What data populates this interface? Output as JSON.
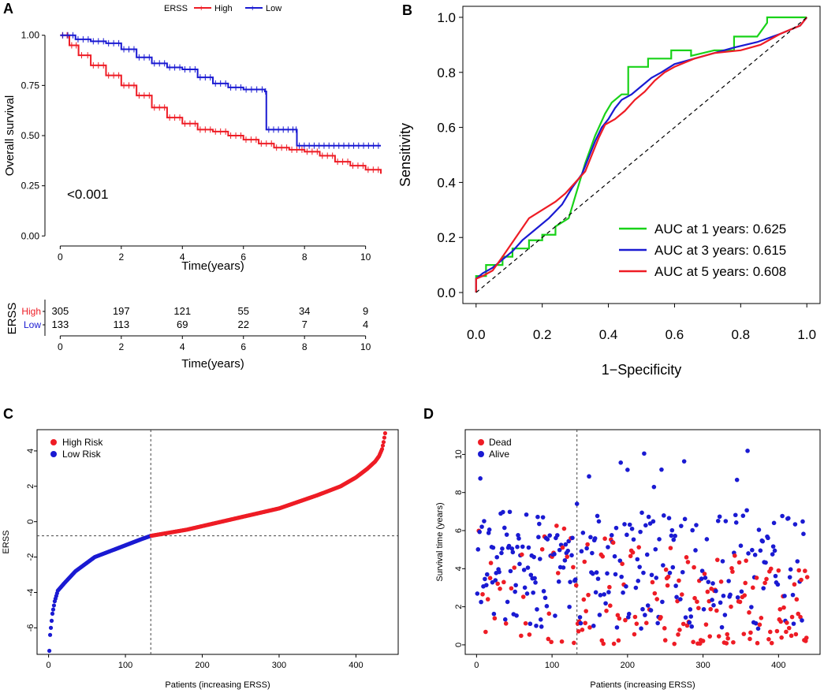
{
  "colors": {
    "high": "#ee1c25",
    "low": "#1a1ad2",
    "green": "#19d219",
    "axis": "#000000"
  },
  "chart_data": [
    {
      "panel": "A",
      "type": "line",
      "title": "",
      "legend_title": "ERSS",
      "legend_position": "top",
      "xlabel": "Time(years)",
      "ylabel": "Overall survival",
      "xlim": [
        -0.5,
        10.5
      ],
      "ylim": [
        -0.05,
        1.05
      ],
      "xticks": [
        "0",
        "2",
        "4",
        "6",
        "8",
        "10"
      ],
      "yticks": [
        "0.00",
        "0.25",
        "0.50",
        "0.75",
        "1.00"
      ],
      "pvalue": "<0.001",
      "series": [
        {
          "name": "High",
          "color_key": "high",
          "t": [
            0,
            0.3,
            0.6,
            1.0,
            1.5,
            2.0,
            2.5,
            3.0,
            3.5,
            4.0,
            4.5,
            5.0,
            5.5,
            6.0,
            6.5,
            7.0,
            7.5,
            8.0,
            8.5,
            9.0,
            9.5,
            10.0,
            10.5
          ],
          "s": [
            1.0,
            0.95,
            0.9,
            0.85,
            0.8,
            0.75,
            0.7,
            0.64,
            0.59,
            0.56,
            0.53,
            0.52,
            0.5,
            0.48,
            0.46,
            0.44,
            0.43,
            0.42,
            0.4,
            0.37,
            0.35,
            0.33,
            0.31
          ]
        },
        {
          "name": "Low",
          "color_key": "low",
          "t": [
            0,
            0.5,
            1.0,
            1.5,
            2.0,
            2.5,
            3.0,
            3.5,
            4.0,
            4.5,
            5.0,
            5.5,
            6.0,
            6.7,
            6.75,
            7.7,
            7.75,
            10.5
          ],
          "s": [
            1.0,
            0.98,
            0.97,
            0.96,
            0.93,
            0.89,
            0.86,
            0.84,
            0.83,
            0.79,
            0.76,
            0.74,
            0.73,
            0.72,
            0.53,
            0.53,
            0.45,
            0.45
          ]
        }
      ]
    },
    {
      "panel": "A-risk-table",
      "type": "table",
      "title": "ERSS",
      "xlabel": "Time(years)",
      "xticks": [
        "0",
        "2",
        "4",
        "6",
        "8",
        "10"
      ],
      "rows": [
        {
          "label": "High",
          "color_key": "high",
          "values": [
            "305",
            "197",
            "121",
            "55",
            "34",
            "9"
          ]
        },
        {
          "label": "Low",
          "color_key": "low",
          "values": [
            "133",
            "113",
            "69",
            "22",
            "7",
            "4"
          ]
        }
      ]
    },
    {
      "panel": "B",
      "type": "line",
      "title": "",
      "xlabel": "1−Specificity",
      "ylabel": "Sensitivity",
      "xlim": [
        -0.04,
        1.04
      ],
      "ylim": [
        -0.04,
        1.04
      ],
      "xticks": [
        "0.0",
        "0.2",
        "0.4",
        "0.6",
        "0.8",
        "1.0"
      ],
      "yticks": [
        "0.0",
        "0.2",
        "0.4",
        "0.6",
        "0.8",
        "1.0"
      ],
      "legend_position": "bottom-right",
      "series": [
        {
          "name": "AUC at 1 years: 0.625",
          "color_key": "green",
          "x": [
            0,
            0,
            0.03,
            0.03,
            0.08,
            0.08,
            0.11,
            0.11,
            0.16,
            0.16,
            0.2,
            0.2,
            0.24,
            0.24,
            0.28,
            0.3,
            0.33,
            0.36,
            0.39,
            0.41,
            0.44,
            0.46,
            0.46,
            0.52,
            0.52,
            0.59,
            0.59,
            0.65,
            0.65,
            0.72,
            0.78,
            0.78,
            0.85,
            0.88,
            0.88,
            0.96,
            1.0
          ],
          "y": [
            0,
            0.06,
            0.06,
            0.1,
            0.1,
            0.13,
            0.13,
            0.16,
            0.16,
            0.19,
            0.19,
            0.21,
            0.21,
            0.24,
            0.27,
            0.35,
            0.47,
            0.57,
            0.65,
            0.69,
            0.72,
            0.72,
            0.82,
            0.82,
            0.85,
            0.85,
            0.88,
            0.88,
            0.86,
            0.88,
            0.88,
            0.93,
            0.93,
            0.98,
            1.0,
            1.0,
            1.0
          ]
        },
        {
          "name": "AUC at 3 years: 0.615",
          "color_key": "low",
          "x": [
            0,
            0,
            0.02,
            0.05,
            0.08,
            0.11,
            0.14,
            0.18,
            0.22,
            0.26,
            0.29,
            0.32,
            0.34,
            0.36,
            0.38,
            0.4,
            0.42,
            0.44,
            0.47,
            0.5,
            0.53,
            0.56,
            0.6,
            0.66,
            0.72,
            0.78,
            0.85,
            0.92,
            0.98,
            1.0
          ],
          "y": [
            0,
            0.05,
            0.07,
            0.09,
            0.12,
            0.15,
            0.19,
            0.23,
            0.27,
            0.32,
            0.38,
            0.43,
            0.49,
            0.55,
            0.6,
            0.63,
            0.67,
            0.7,
            0.72,
            0.75,
            0.78,
            0.8,
            0.83,
            0.85,
            0.87,
            0.89,
            0.91,
            0.94,
            0.97,
            1.0
          ]
        },
        {
          "name": "AUC at 5 years: 0.608",
          "color_key": "high",
          "x": [
            0,
            0,
            0.02,
            0.05,
            0.08,
            0.12,
            0.16,
            0.2,
            0.24,
            0.27,
            0.3,
            0.33,
            0.35,
            0.37,
            0.39,
            0.42,
            0.45,
            0.48,
            0.51,
            0.54,
            0.57,
            0.6,
            0.66,
            0.72,
            0.8,
            0.86,
            0.92,
            0.98,
            1.0
          ],
          "y": [
            0,
            0.05,
            0.06,
            0.08,
            0.13,
            0.2,
            0.27,
            0.3,
            0.33,
            0.36,
            0.4,
            0.44,
            0.5,
            0.56,
            0.61,
            0.63,
            0.66,
            0.7,
            0.73,
            0.77,
            0.8,
            0.82,
            0.85,
            0.87,
            0.88,
            0.9,
            0.94,
            0.97,
            1.0
          ]
        },
        {
          "name": "reference",
          "color_key": "axis",
          "dashed": true,
          "x": [
            0,
            1
          ],
          "y": [
            0,
            1
          ]
        }
      ]
    },
    {
      "panel": "C",
      "type": "scatter",
      "title": "",
      "xlabel": "Patients (increasing ERSS)",
      "ylabel": "ERSS",
      "xlim": [
        -15,
        455
      ],
      "ylim": [
        -7.5,
        5.2
      ],
      "xticks": [
        "0",
        "100",
        "200",
        "300",
        "400"
      ],
      "yticks": [
        "-6",
        "-4",
        "-2",
        "0",
        "2",
        "4"
      ],
      "n_patients": 438,
      "cutoff_patient": 133,
      "cutoff_score": -0.8,
      "legend": [
        "High Risk",
        "Low Risk"
      ],
      "legend_position": "top-left",
      "curve_knots": {
        "patient": [
          1,
          2,
          3,
          5,
          8,
          12,
          20,
          35,
          60,
          90,
          120,
          133,
          180,
          250,
          300,
          350,
          380,
          400,
          415,
          425,
          430,
          434,
          436,
          438
        ],
        "erss": [
          -7.3,
          -6.4,
          -6.0,
          -5.2,
          -4.5,
          -3.9,
          -3.5,
          -2.8,
          -2.0,
          -1.5,
          -1.0,
          -0.8,
          -0.45,
          0.25,
          0.75,
          1.5,
          2.0,
          2.5,
          3.0,
          3.4,
          3.7,
          4.1,
          4.5,
          5.0
        ]
      }
    },
    {
      "panel": "D",
      "type": "scatter",
      "title": "",
      "xlabel": "Patients (increasing ERSS)",
      "ylabel": "Survival time (years)",
      "xlim": [
        -15,
        455
      ],
      "ylim": [
        -0.5,
        11.3
      ],
      "xticks": [
        "0",
        "100",
        "200",
        "300",
        "400"
      ],
      "yticks": [
        "0",
        "2",
        "4",
        "6",
        "8",
        "10"
      ],
      "n_patients": 438,
      "cutoff_patient": 133,
      "legend": [
        "Dead",
        "Alive"
      ],
      "legend_position": "top-left",
      "status_colors": {
        "Dead": "high",
        "Alive": "low"
      },
      "points": "438 patients; 1 point per patient, survival time 0-11 years, roughly 40% dead (red) concentrated at shorter times and higher ERSS"
    }
  ],
  "panels": {
    "a": "A",
    "b": "B",
    "c": "C",
    "d": "D"
  }
}
